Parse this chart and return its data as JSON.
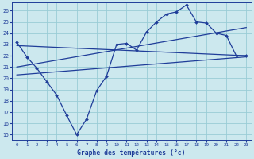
{
  "title": "Graphe des températures (°c)",
  "bg_color": "#cce8ee",
  "line_color": "#1f3d99",
  "grid_color": "#99ccd6",
  "xlim": [
    -0.5,
    23.5
  ],
  "ylim": [
    14.5,
    26.7
  ],
  "xticks": [
    0,
    1,
    2,
    3,
    4,
    5,
    6,
    7,
    8,
    9,
    10,
    11,
    12,
    13,
    14,
    15,
    16,
    17,
    18,
    19,
    20,
    21,
    22,
    23
  ],
  "yticks": [
    15,
    16,
    17,
    18,
    19,
    20,
    21,
    22,
    23,
    24,
    25,
    26
  ],
  "main_x": [
    0,
    1,
    2,
    3,
    4,
    5,
    6,
    7,
    8,
    9,
    10,
    11,
    12,
    13,
    14,
    15,
    16,
    17,
    18,
    19,
    20,
    21,
    22,
    23
  ],
  "main_y": [
    23.2,
    21.9,
    20.9,
    19.7,
    18.5,
    16.7,
    15.0,
    16.4,
    18.9,
    20.2,
    23.0,
    23.1,
    22.5,
    24.1,
    25.0,
    25.7,
    25.9,
    26.5,
    25.0,
    24.9,
    24.0,
    23.8,
    22.0,
    22.0
  ],
  "line1_x": [
    0,
    23
  ],
  "line1_y": [
    22.9,
    22.0
  ],
  "line2_x": [
    0,
    23
  ],
  "line2_y": [
    21.0,
    24.5
  ],
  "line3_x": [
    0,
    23
  ],
  "line3_y": [
    20.3,
    21.9
  ]
}
